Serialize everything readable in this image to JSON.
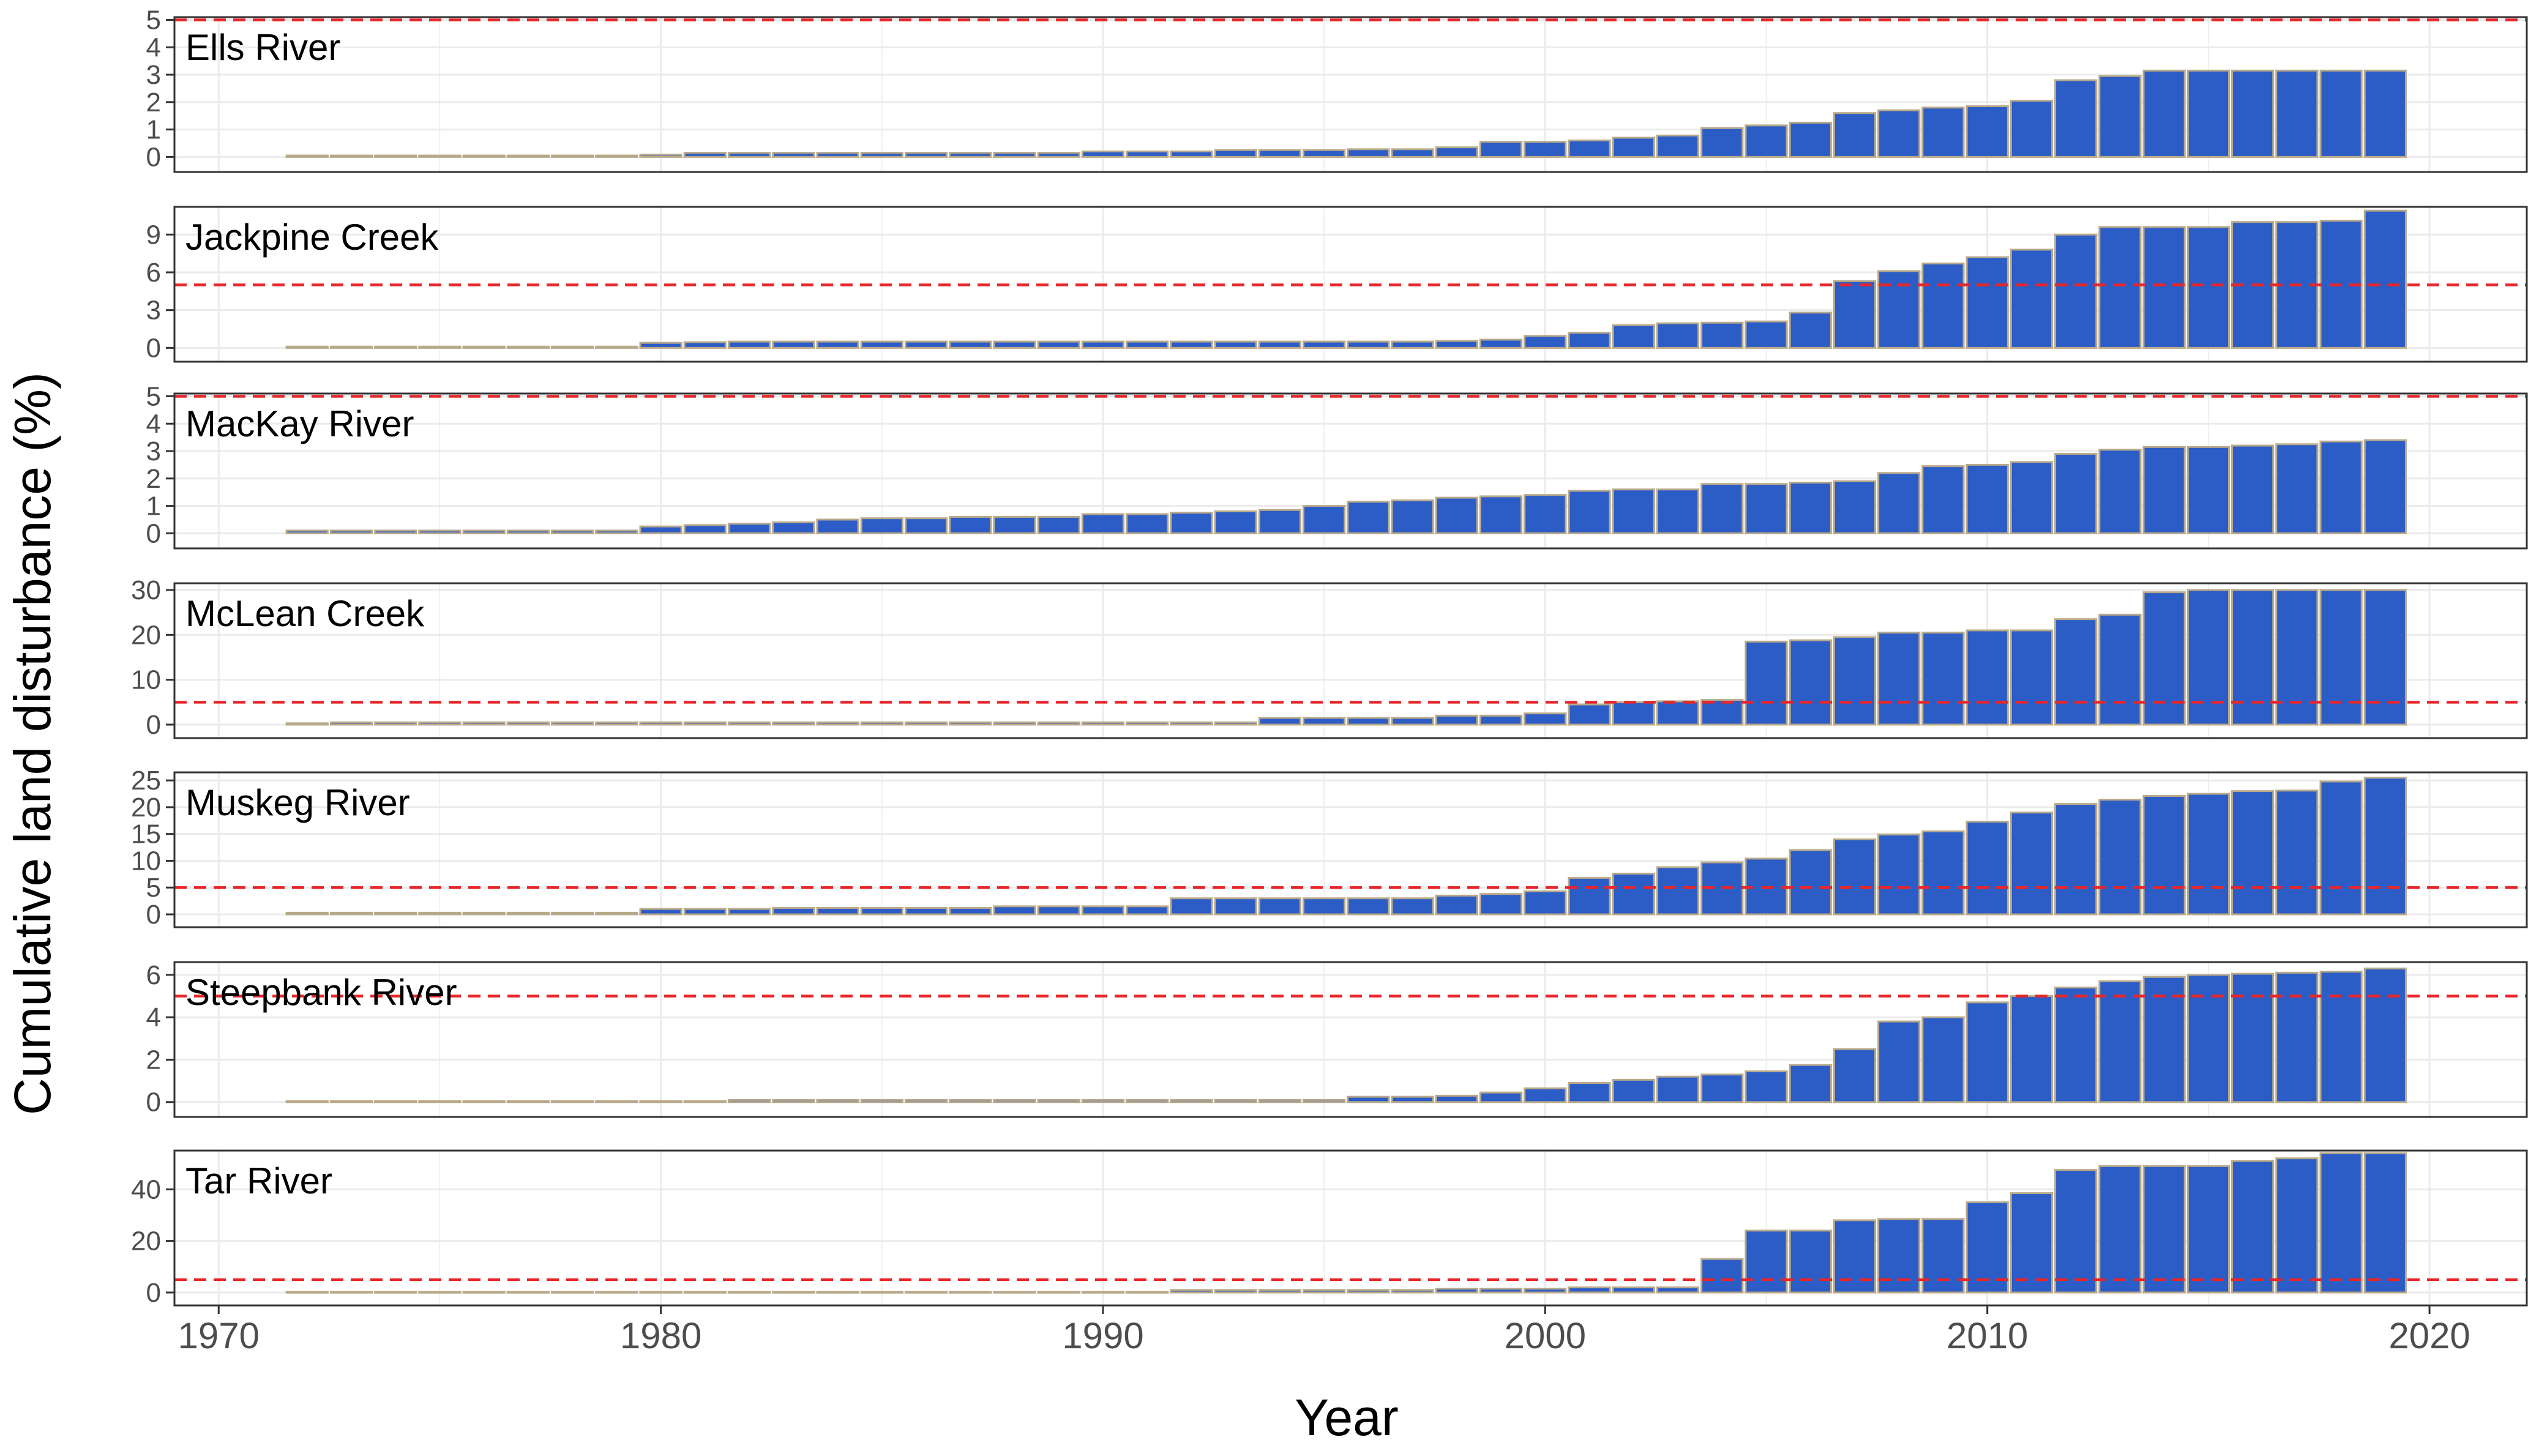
{
  "figure": {
    "ylabel": "Cumulative land disturbance (%)",
    "xlabel": "Year",
    "x_ticks": [
      1970,
      1980,
      1990,
      2000,
      2010,
      2020
    ],
    "xlim": [
      1969,
      2022.2
    ],
    "threshold": 5,
    "colors": {
      "bar_fill": "#2C5CC5",
      "bar_edge": "#B8A98A",
      "threshold": "#E8262A",
      "grid": "#EBEBEB",
      "panel_border": "#333333"
    }
  },
  "chart_data": [
    {
      "type": "bar",
      "title": "Ells River",
      "ylim": [
        -0.55,
        5.1
      ],
      "yticks": [
        0,
        1,
        2,
        3,
        4,
        5
      ],
      "x": [
        1972,
        1973,
        1974,
        1975,
        1976,
        1977,
        1978,
        1979,
        1980,
        1981,
        1982,
        1983,
        1984,
        1985,
        1986,
        1987,
        1988,
        1989,
        1990,
        1991,
        1992,
        1993,
        1994,
        1995,
        1996,
        1997,
        1998,
        1999,
        2000,
        2001,
        2002,
        2003,
        2004,
        2005,
        2006,
        2007,
        2008,
        2009,
        2010,
        2011,
        2012,
        2013,
        2014,
        2015,
        2016,
        2017,
        2018,
        2019
      ],
      "values": [
        0.05,
        0.05,
        0.05,
        0.05,
        0.05,
        0.05,
        0.05,
        0.05,
        0.08,
        0.15,
        0.15,
        0.15,
        0.15,
        0.15,
        0.15,
        0.15,
        0.15,
        0.15,
        0.2,
        0.2,
        0.2,
        0.25,
        0.25,
        0.25,
        0.28,
        0.28,
        0.35,
        0.55,
        0.55,
        0.6,
        0.7,
        0.78,
        1.05,
        1.15,
        1.25,
        1.6,
        1.7,
        1.8,
        1.85,
        2.05,
        2.8,
        2.95,
        3.15,
        3.15,
        3.15,
        3.15,
        3.15,
        3.15
      ]
    },
    {
      "type": "bar",
      "title": "Jackpine Creek",
      "ylim": [
        -1.1,
        11.2
      ],
      "yticks": [
        0,
        3,
        6,
        9
      ],
      "x": [
        1972,
        1973,
        1974,
        1975,
        1976,
        1977,
        1978,
        1979,
        1980,
        1981,
        1982,
        1983,
        1984,
        1985,
        1986,
        1987,
        1988,
        1989,
        1990,
        1991,
        1992,
        1993,
        1994,
        1995,
        1996,
        1997,
        1998,
        1999,
        2000,
        2001,
        2002,
        2003,
        2004,
        2005,
        2006,
        2007,
        2008,
        2009,
        2010,
        2011,
        2012,
        2013,
        2014,
        2015,
        2016,
        2017,
        2018,
        2019
      ],
      "values": [
        0.1,
        0.1,
        0.1,
        0.1,
        0.1,
        0.1,
        0.1,
        0.1,
        0.4,
        0.45,
        0.5,
        0.5,
        0.5,
        0.5,
        0.5,
        0.5,
        0.5,
        0.5,
        0.5,
        0.5,
        0.5,
        0.5,
        0.5,
        0.5,
        0.5,
        0.5,
        0.55,
        0.65,
        0.95,
        1.2,
        1.8,
        1.95,
        2.0,
        2.1,
        2.8,
        5.3,
        6.1,
        6.7,
        7.2,
        7.8,
        9.0,
        9.6,
        9.6,
        9.6,
        10.0,
        10.0,
        10.1,
        10.9
      ]
    },
    {
      "type": "bar",
      "title": "MacKay River",
      "ylim": [
        -0.55,
        5.1
      ],
      "yticks": [
        0,
        1,
        2,
        3,
        4,
        5
      ],
      "x": [
        1972,
        1973,
        1974,
        1975,
        1976,
        1977,
        1978,
        1979,
        1980,
        1981,
        1982,
        1983,
        1984,
        1985,
        1986,
        1987,
        1988,
        1989,
        1990,
        1991,
        1992,
        1993,
        1994,
        1995,
        1996,
        1997,
        1998,
        1999,
        2000,
        2001,
        2002,
        2003,
        2004,
        2005,
        2006,
        2007,
        2008,
        2009,
        2010,
        2011,
        2012,
        2013,
        2014,
        2015,
        2016,
        2017,
        2018,
        2019
      ],
      "values": [
        0.1,
        0.1,
        0.1,
        0.1,
        0.1,
        0.1,
        0.1,
        0.1,
        0.25,
        0.3,
        0.35,
        0.4,
        0.5,
        0.55,
        0.55,
        0.6,
        0.6,
        0.6,
        0.7,
        0.7,
        0.75,
        0.8,
        0.85,
        1.0,
        1.15,
        1.2,
        1.3,
        1.35,
        1.4,
        1.55,
        1.6,
        1.6,
        1.8,
        1.8,
        1.85,
        1.9,
        2.2,
        2.45,
        2.5,
        2.6,
        2.9,
        3.05,
        3.15,
        3.15,
        3.2,
        3.25,
        3.35,
        3.4
      ]
    },
    {
      "type": "bar",
      "title": "McLean Creek",
      "ylim": [
        -3,
        31.5
      ],
      "yticks": [
        0,
        10,
        20,
        30
      ],
      "x": [
        1972,
        1973,
        1974,
        1975,
        1976,
        1977,
        1978,
        1979,
        1980,
        1981,
        1982,
        1983,
        1984,
        1985,
        1986,
        1987,
        1988,
        1989,
        1990,
        1991,
        1992,
        1993,
        1994,
        1995,
        1996,
        1997,
        1998,
        1999,
        2000,
        2001,
        2002,
        2003,
        2004,
        2005,
        2006,
        2007,
        2008,
        2009,
        2010,
        2011,
        2012,
        2013,
        2014,
        2015,
        2016,
        2017,
        2018,
        2019
      ],
      "values": [
        0.3,
        0.5,
        0.5,
        0.5,
        0.5,
        0.5,
        0.5,
        0.5,
        0.5,
        0.5,
        0.5,
        0.5,
        0.5,
        0.5,
        0.5,
        0.5,
        0.5,
        0.5,
        0.5,
        0.5,
        0.5,
        0.5,
        1.5,
        1.5,
        1.5,
        1.5,
        2.0,
        2.0,
        2.5,
        4.5,
        5.0,
        5.2,
        5.5,
        18.5,
        18.8,
        19.5,
        20.5,
        20.5,
        21.0,
        21.0,
        23.5,
        24.5,
        29.5,
        30.0,
        30.0,
        30.0,
        30.0,
        30.0
      ]
    },
    {
      "type": "bar",
      "title": "Muskeg River",
      "ylim": [
        -2.4,
        26.5
      ],
      "yticks": [
        0,
        5,
        10,
        15,
        20,
        25
      ],
      "x": [
        1972,
        1973,
        1974,
        1975,
        1976,
        1977,
        1978,
        1979,
        1980,
        1981,
        1982,
        1983,
        1984,
        1985,
        1986,
        1987,
        1988,
        1989,
        1990,
        1991,
        1992,
        1993,
        1994,
        1995,
        1996,
        1997,
        1998,
        1999,
        2000,
        2001,
        2002,
        2003,
        2004,
        2005,
        2006,
        2007,
        2008,
        2009,
        2010,
        2011,
        2012,
        2013,
        2014,
        2015,
        2016,
        2017,
        2018,
        2019
      ],
      "values": [
        0.3,
        0.3,
        0.3,
        0.3,
        0.3,
        0.3,
        0.3,
        0.3,
        1.0,
        1.0,
        1.0,
        1.2,
        1.2,
        1.2,
        1.2,
        1.2,
        1.5,
        1.5,
        1.5,
        1.5,
        3.0,
        3.0,
        3.0,
        3.0,
        3.0,
        3.0,
        3.5,
        3.8,
        4.3,
        6.8,
        7.6,
        8.8,
        9.7,
        10.4,
        12.0,
        14.0,
        14.9,
        15.5,
        17.3,
        19.0,
        20.6,
        21.4,
        22.1,
        22.5,
        23.0,
        23.1,
        24.8,
        25.5
      ]
    },
    {
      "type": "bar",
      "title": "Steepbank River",
      "ylim": [
        -0.7,
        6.6
      ],
      "yticks": [
        0,
        2,
        4,
        6
      ],
      "x": [
        1972,
        1973,
        1974,
        1975,
        1976,
        1977,
        1978,
        1979,
        1980,
        1981,
        1982,
        1983,
        1984,
        1985,
        1986,
        1987,
        1988,
        1989,
        1990,
        1991,
        1992,
        1993,
        1994,
        1995,
        1996,
        1997,
        1998,
        1999,
        2000,
        2001,
        2002,
        2003,
        2004,
        2005,
        2006,
        2007,
        2008,
        2009,
        2010,
        2011,
        2012,
        2013,
        2014,
        2015,
        2016,
        2017,
        2018,
        2019
      ],
      "values": [
        0.05,
        0.05,
        0.05,
        0.05,
        0.05,
        0.05,
        0.05,
        0.05,
        0.05,
        0.05,
        0.1,
        0.1,
        0.1,
        0.1,
        0.1,
        0.1,
        0.1,
        0.1,
        0.1,
        0.1,
        0.1,
        0.1,
        0.1,
        0.1,
        0.25,
        0.25,
        0.3,
        0.45,
        0.65,
        0.9,
        1.05,
        1.2,
        1.3,
        1.45,
        1.75,
        2.5,
        3.8,
        4.0,
        4.7,
        5.0,
        5.4,
        5.7,
        5.9,
        6.0,
        6.05,
        6.1,
        6.15,
        6.3
      ]
    },
    {
      "type": "bar",
      "title": "Tar River",
      "ylim": [
        -5,
        55
      ],
      "yticks": [
        0,
        20,
        40
      ],
      "x": [
        1972,
        1973,
        1974,
        1975,
        1976,
        1977,
        1978,
        1979,
        1980,
        1981,
        1982,
        1983,
        1984,
        1985,
        1986,
        1987,
        1988,
        1989,
        1990,
        1991,
        1992,
        1993,
        1994,
        1995,
        1996,
        1997,
        1998,
        1999,
        2000,
        2001,
        2002,
        2003,
        2004,
        2005,
        2006,
        2007,
        2008,
        2009,
        2010,
        2011,
        2012,
        2013,
        2014,
        2015,
        2016,
        2017,
        2018,
        2019
      ],
      "values": [
        0.3,
        0.3,
        0.3,
        0.3,
        0.3,
        0.3,
        0.3,
        0.3,
        0.3,
        0.3,
        0.3,
        0.3,
        0.3,
        0.3,
        0.3,
        0.3,
        0.3,
        0.3,
        0.3,
        0.3,
        1.0,
        1.0,
        1.0,
        1.0,
        1.0,
        1.0,
        1.5,
        1.5,
        1.5,
        2.0,
        2.0,
        2.0,
        13.0,
        24.0,
        24.0,
        28.0,
        28.5,
        28.5,
        35.0,
        38.5,
        47.5,
        49.0,
        49.0,
        49.0,
        51.0,
        52.0,
        54.0,
        54.0
      ]
    }
  ]
}
